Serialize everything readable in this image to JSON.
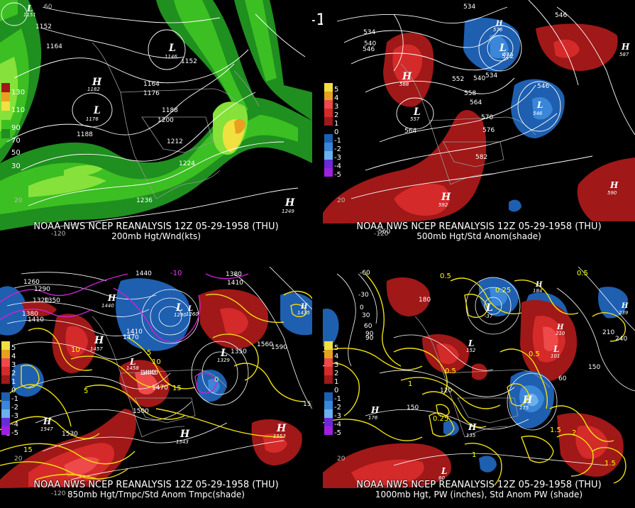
{
  "main_title": "12Z 05-29-1958 (THU)",
  "colors": {
    "green_dark": "#1f8f1f",
    "green_mid": "#3cbf22",
    "green_light": "#86e23a",
    "yellow": "#f0e040",
    "orange": "#e8a020",
    "red_dark": "#a01818",
    "red_mid": "#d42a2a",
    "red_light": "#ee4a4a",
    "blue_dark": "#1e5fb0",
    "blue_mid": "#3a86d8",
    "blue_light": "#6ab0ee",
    "magenta": "#d020d0",
    "contour_yellow": "#f0e010"
  },
  "panels": [
    {
      "id": "200mb",
      "line1": "NOAA NWS NCEP REANALYSIS 12Z 05-29-1958 (THU)",
      "line2": "200mb Hgt/Wnd(kts)",
      "legend": [
        "130",
        "110",
        "90",
        "70",
        "50",
        "30"
      ],
      "contour_labels": [
        "1152",
        "1164",
        "1152",
        "1164",
        "1176",
        "1188",
        "1200",
        "1212",
        "1224",
        "1236",
        "1188",
        "1151"
      ],
      "centers": [
        {
          "t": "H",
          "v": "1182"
        },
        {
          "t": "L",
          "v": "1176"
        },
        {
          "t": "L",
          "v": "1146"
        },
        {
          "t": "H",
          "v": "1249"
        },
        {
          "t": "L",
          "v": "1151"
        }
      ],
      "lats": [
        "60",
        "20",
        "-120"
      ]
    },
    {
      "id": "500mb",
      "line1": "NOAA NWS NCEP REANALYSIS 12Z 05-29-1958 (THU)",
      "line2": "500mb Hgt/Std Anom(shade)",
      "legend": [
        "5",
        "4",
        "3",
        "2",
        "1",
        "0",
        "-1",
        "-2",
        "-3",
        "-4",
        "-5"
      ],
      "contour_labels": [
        "534",
        "546",
        "546",
        "552",
        "540",
        "558",
        "564",
        "570",
        "576",
        "582",
        "534",
        "522",
        "564",
        "546",
        "534",
        "540"
      ],
      "centers": [
        {
          "t": "H",
          "v": "568"
        },
        {
          "t": "L",
          "v": "557"
        },
        {
          "t": "L",
          "v": "522"
        },
        {
          "t": "L",
          "v": "546"
        },
        {
          "t": "H",
          "v": "592"
        },
        {
          "t": "H",
          "v": "587"
        },
        {
          "t": "H",
          "v": "590"
        },
        {
          "t": "H",
          "v": "576"
        }
      ],
      "lats": [
        "20",
        "-120",
        "560"
      ]
    },
    {
      "id": "850mb",
      "line1": "NOAA NWS NCEP REANALYSIS 12Z 05-29-1958 (THU)",
      "line2": "850mb Hgt/Tmpc/Std Anom Tmpc(shade)",
      "legend": [
        "5",
        "4",
        "3",
        "2",
        "1",
        "0",
        "-1",
        "-2",
        "-3",
        "-4",
        "-5"
      ],
      "contour_labels": [
        "1260",
        "1290",
        "1320",
        "1350",
        "1380",
        "1410",
        "1440",
        "1410",
        "1380",
        "1410",
        "1440",
        "1470",
        "1500",
        "1530",
        "1560",
        "1590",
        "1530",
        "1350",
        "1470",
        "1440",
        "-10",
        "-5",
        "0",
        "5",
        "10",
        "15",
        "5",
        "10",
        "15"
      ],
      "centers": [
        {
          "t": "H",
          "v": "1440"
        },
        {
          "t": "L",
          "v": "1290"
        },
        {
          "t": "L",
          "v": "1260"
        },
        {
          "t": "H",
          "v": "1457"
        },
        {
          "t": "L",
          "v": "1458"
        },
        {
          "t": "L",
          "v": "1329"
        },
        {
          "t": "H",
          "v": "1547"
        },
        {
          "t": "H",
          "v": "1543"
        },
        {
          "t": "H",
          "v": "1553"
        },
        {
          "t": "H",
          "v": "1435"
        }
      ],
      "lats": [
        "20",
        "-120"
      ]
    },
    {
      "id": "1000mb",
      "line1": "NOAA NWS NCEP REANALYSIS 12Z 05-29-1958 (THU)",
      "line2": "1000mb Hgt, PW (inches), Std Anom PW (shade)",
      "legend": [
        "5",
        "4",
        "3",
        "2",
        "1",
        "0",
        "-1",
        "-2",
        "-3",
        "-4",
        "-5"
      ],
      "contour_labels": [
        "-60",
        "-30",
        "0",
        "30",
        "60",
        "90",
        "120",
        "150",
        "180",
        "210",
        "240",
        "150",
        "90",
        "60",
        "0.5",
        "0.25",
        "1",
        "1.5",
        "2",
        "0.5",
        "0.25",
        "0.5",
        "1",
        "1.5",
        "0.5"
      ],
      "centers": [
        {
          "t": "H",
          "v": "176"
        },
        {
          "t": "L",
          "v": "-37"
        },
        {
          "t": "H",
          "v": "184"
        },
        {
          "t": "H",
          "v": "135"
        },
        {
          "t": "H",
          "v": "239"
        },
        {
          "t": "H",
          "v": "175"
        },
        {
          "t": "L",
          "v": "152"
        },
        {
          "t": "L",
          "v": "60"
        },
        {
          "t": "L",
          "v": "101"
        },
        {
          "t": "H",
          "v": "210"
        }
      ],
      "lats": [
        "20"
      ]
    }
  ]
}
